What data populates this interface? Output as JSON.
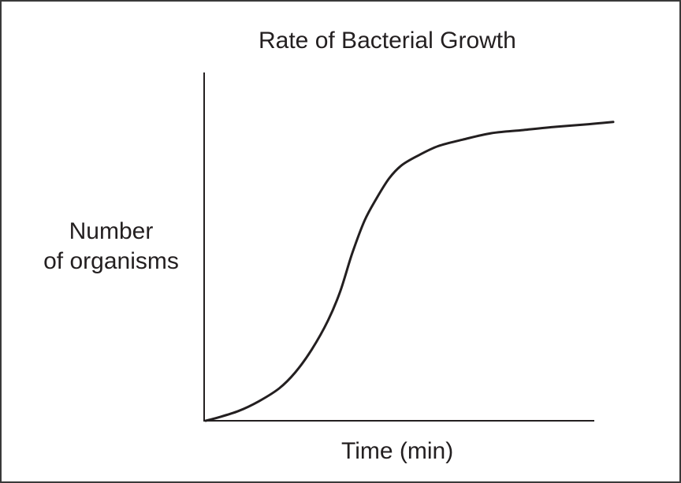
{
  "chart_data": {
    "type": "line",
    "title": "Rate of Bacterial Growth",
    "xlabel": "Time (min)",
    "ylabel_lines": [
      "Number",
      "of organisms"
    ],
    "grid": false,
    "ticks": false,
    "xlim": [
      0,
      100
    ],
    "ylim": [
      0,
      100
    ],
    "series": [
      {
        "x": [
          0,
          3,
          8,
          13,
          18,
          22,
          26,
          30,
          33,
          36,
          39,
          42,
          45,
          48,
          52,
          57,
          63,
          70,
          78,
          86,
          94,
          100
        ],
        "y": [
          0,
          1,
          3,
          6,
          10,
          15,
          22,
          31,
          40,
          52,
          62,
          69,
          75,
          79,
          82,
          85,
          87,
          89,
          90,
          91,
          91.8,
          92.5
        ]
      }
    ],
    "colors": {
      "curve": "#231f20",
      "axis": "#231f20"
    }
  }
}
